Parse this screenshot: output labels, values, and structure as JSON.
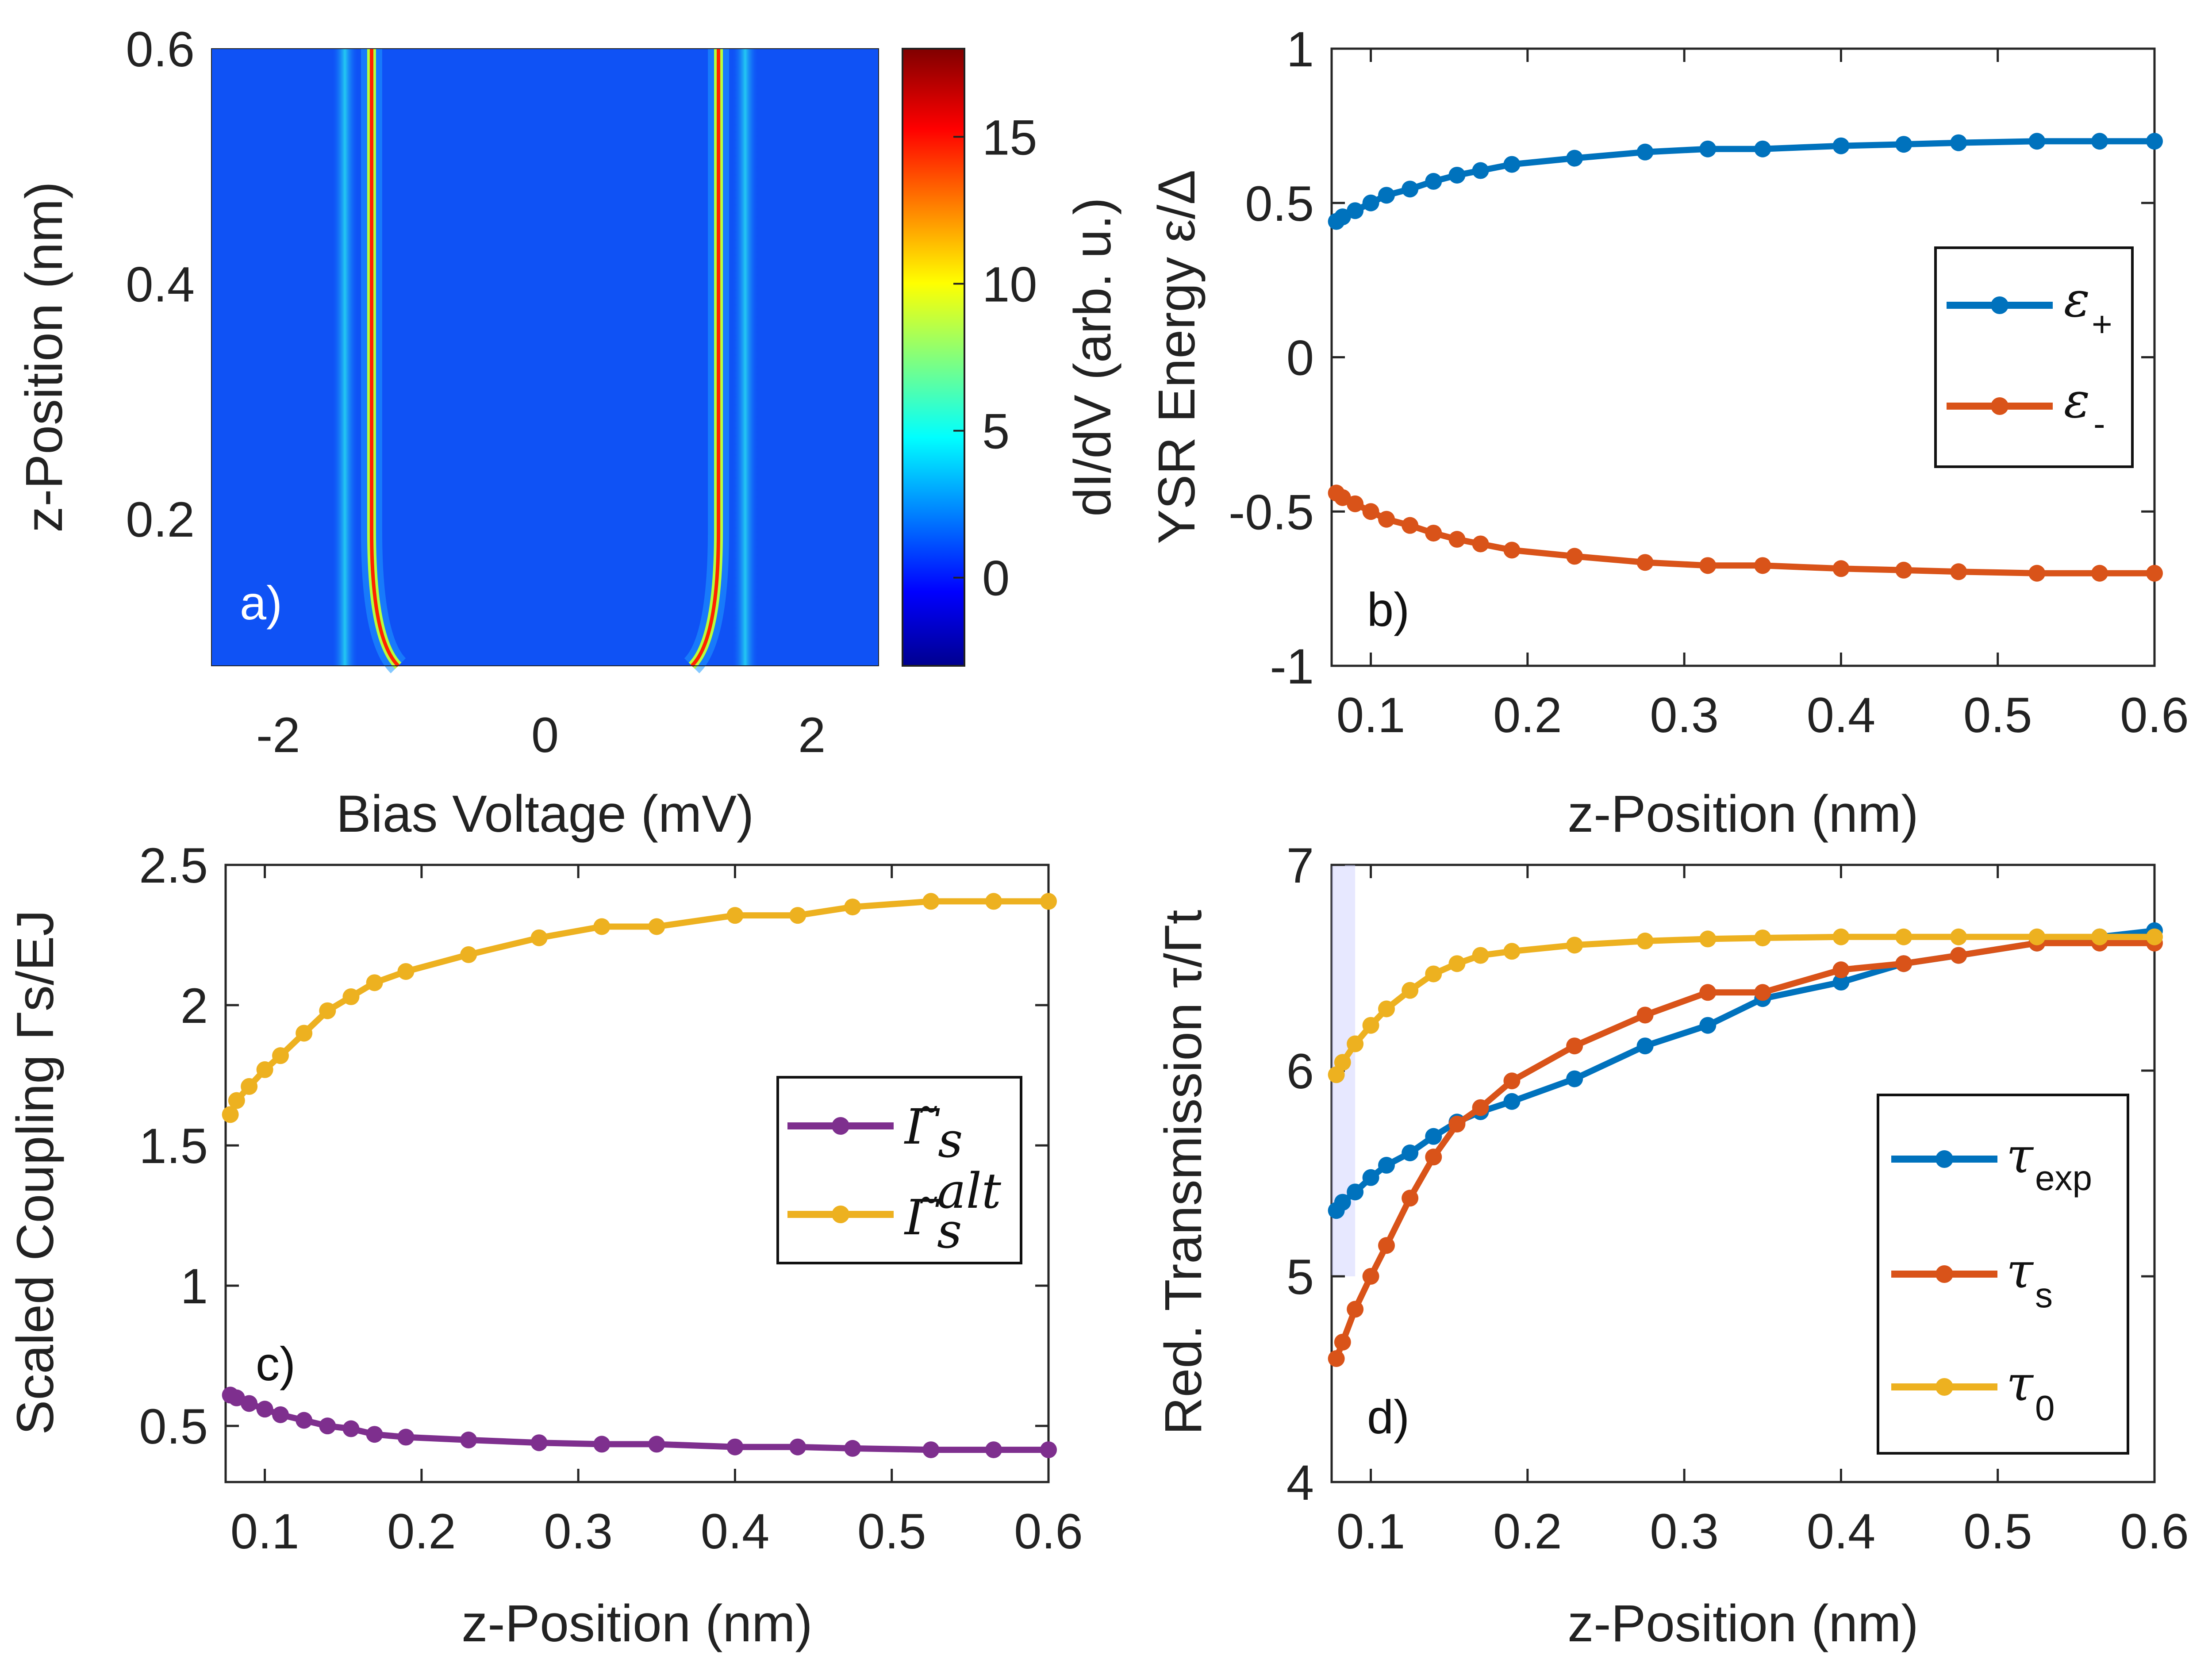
{
  "chart_data": [
    {
      "type": "heatmap",
      "panel_label": "a)",
      "xlabel": "Bias Voltage (mV)",
      "ylabel": "z-Position (nm)",
      "xlim": [
        -2.5,
        2.5
      ],
      "ylim": [
        0.075,
        0.6
      ],
      "xticks": [
        "-2",
        "0",
        "2"
      ],
      "yticks": [
        "0.2",
        "0.4",
        "0.6"
      ],
      "colorbar": {
        "label": "dI/dV (arb. u.)",
        "range": [
          -3,
          18
        ],
        "ticks": [
          "0",
          "5",
          "10",
          "15"
        ]
      },
      "features": [
        {
          "name": "outer peak (negative bias)",
          "bias_mV": -1.5
        },
        {
          "name": "inner peak (negative bias)",
          "bias_mV": -1.3,
          "bias_at_low_z_mV": -1.1
        },
        {
          "name": "inner peak (positive bias)",
          "bias_mV": 1.3,
          "bias_at_low_z_mV": 1.1
        },
        {
          "name": "outer peak (positive bias)",
          "bias_mV": 1.5
        }
      ]
    },
    {
      "type": "line",
      "panel_label": "b)",
      "xlabel": "z-Position (nm)",
      "ylabel": "YSR Energy ε/Δ",
      "xlim": [
        0.075,
        0.6
      ],
      "ylim": [
        -1,
        1
      ],
      "xticks": [
        "0.1",
        "0.2",
        "0.3",
        "0.4",
        "0.5",
        "0.6"
      ],
      "yticks": [
        "-1",
        "-0.5",
        "0",
        "0.5",
        "1"
      ],
      "x": [
        0.078,
        0.082,
        0.09,
        0.1,
        0.11,
        0.125,
        0.14,
        0.155,
        0.17,
        0.19,
        0.23,
        0.275,
        0.315,
        0.35,
        0.4,
        0.44,
        0.475,
        0.525,
        0.565,
        0.6
      ],
      "series": [
        {
          "name": "ε+",
          "legend_symbol": "ε",
          "legend_sub": "+",
          "color": "#0072BD",
          "values": [
            0.44,
            0.455,
            0.475,
            0.5,
            0.525,
            0.545,
            0.57,
            0.59,
            0.605,
            0.625,
            0.645,
            0.665,
            0.675,
            0.675,
            0.685,
            0.69,
            0.695,
            0.7,
            0.7,
            0.7
          ]
        },
        {
          "name": "ε-",
          "legend_symbol": "ε",
          "legend_sub": "-",
          "color": "#D95319",
          "values": [
            -0.44,
            -0.455,
            -0.475,
            -0.5,
            -0.525,
            -0.545,
            -0.57,
            -0.59,
            -0.605,
            -0.625,
            -0.645,
            -0.665,
            -0.675,
            -0.675,
            -0.685,
            -0.69,
            -0.695,
            -0.7,
            -0.7,
            -0.7
          ]
        }
      ]
    },
    {
      "type": "line",
      "panel_label": "c)",
      "xlabel": "z-Position (nm)",
      "ylabel": "Scaled Coupling Γs/EJ",
      "xlim": [
        0.075,
        0.6
      ],
      "ylim": [
        0.3,
        2.5
      ],
      "xticks": [
        "0.1",
        "0.2",
        "0.3",
        "0.4",
        "0.5",
        "0.6"
      ],
      "yticks": [
        "0.5",
        "1",
        "1.5",
        "2",
        "2.5"
      ],
      "x": [
        0.078,
        0.082,
        0.09,
        0.1,
        0.11,
        0.125,
        0.14,
        0.155,
        0.17,
        0.19,
        0.23,
        0.275,
        0.315,
        0.35,
        0.4,
        0.44,
        0.475,
        0.525,
        0.565,
        0.6
      ],
      "series": [
        {
          "name": "Γ̃s",
          "legend_symbol": "Γ̃",
          "legend_sub": "s",
          "legend_sup": "",
          "color": "#7E2F8E",
          "values": [
            0.61,
            0.6,
            0.58,
            0.56,
            0.54,
            0.52,
            0.5,
            0.49,
            0.47,
            0.46,
            0.45,
            0.44,
            0.435,
            0.435,
            0.425,
            0.425,
            0.42,
            0.415,
            0.415,
            0.415
          ]
        },
        {
          "name": "Γ̃s^alt",
          "legend_symbol": "Γ̃",
          "legend_sub": "s",
          "legend_sup": "alt",
          "color": "#EDB120",
          "values": [
            1.61,
            1.66,
            1.71,
            1.77,
            1.82,
            1.9,
            1.98,
            2.03,
            2.08,
            2.12,
            2.18,
            2.24,
            2.28,
            2.28,
            2.32,
            2.32,
            2.35,
            2.37,
            2.37,
            2.37
          ]
        }
      ]
    },
    {
      "type": "line",
      "panel_label": "d)",
      "xlabel": "z-Position (nm)",
      "ylabel": "Red. Transmission τ/Γt",
      "xlim": [
        0.075,
        0.6
      ],
      "ylim": [
        4,
        7
      ],
      "xticks": [
        "0.1",
        "0.2",
        "0.3",
        "0.4",
        "0.5",
        "0.6"
      ],
      "yticks": [
        "4",
        "5",
        "6",
        "7"
      ],
      "shaded_x_range": [
        0.075,
        0.09
      ],
      "x": [
        0.078,
        0.082,
        0.09,
        0.1,
        0.11,
        0.125,
        0.14,
        0.155,
        0.17,
        0.19,
        0.23,
        0.275,
        0.315,
        0.35,
        0.4,
        0.44,
        0.475,
        0.525,
        0.565,
        0.6
      ],
      "series": [
        {
          "name": "τexp",
          "legend_symbol": "τ",
          "legend_sub": "exp",
          "color": "#0072BD",
          "values": [
            5.32,
            5.36,
            5.41,
            5.48,
            5.54,
            5.6,
            5.68,
            5.75,
            5.8,
            5.85,
            5.96,
            6.12,
            6.22,
            6.35,
            6.43,
            6.52,
            6.56,
            6.62,
            6.65,
            6.68
          ]
        },
        {
          "name": "τs",
          "legend_symbol": "τ",
          "legend_sub": "s",
          "color": "#D95319",
          "values": [
            4.6,
            4.68,
            4.84,
            5.0,
            5.15,
            5.38,
            5.58,
            5.74,
            5.82,
            5.95,
            6.12,
            6.27,
            6.38,
            6.38,
            6.49,
            6.52,
            6.56,
            6.62,
            6.62,
            6.62
          ]
        },
        {
          "name": "τ0",
          "legend_symbol": "τ",
          "legend_sub": "0",
          "color": "#EDB120",
          "values": [
            5.98,
            6.04,
            6.13,
            6.22,
            6.3,
            6.39,
            6.47,
            6.52,
            6.56,
            6.58,
            6.61,
            6.63,
            6.64,
            6.645,
            6.65,
            6.65,
            6.65,
            6.65,
            6.65,
            6.65
          ]
        }
      ]
    }
  ]
}
